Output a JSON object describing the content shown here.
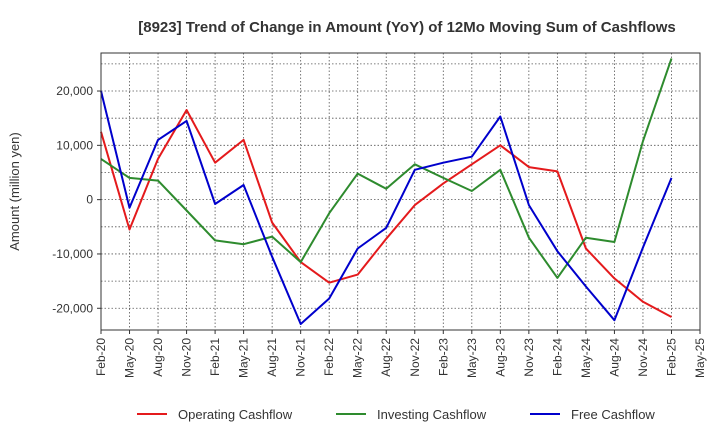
{
  "chart_data": {
    "type": "line",
    "title": "[8923]  Trend of Change in Amount (YoY) of 12Mo Moving Sum of Cashflows",
    "xlabel": "",
    "ylabel": "Amount (million yen)",
    "ylim": [
      -24000,
      27000
    ],
    "yticks": [
      -20000,
      -10000,
      0,
      10000,
      20000
    ],
    "ytick_labels": [
      "-20,000",
      "-10,000",
      "0",
      "10,000",
      "20,000"
    ],
    "grid": true,
    "legend_position": "bottom",
    "categories": [
      "Feb-20",
      "May-20",
      "Aug-20",
      "Nov-20",
      "Feb-21",
      "May-21",
      "Aug-21",
      "Nov-21",
      "Feb-22",
      "May-22",
      "Aug-22",
      "Nov-22",
      "Feb-23",
      "May-23",
      "Aug-23",
      "Nov-23",
      "Feb-24",
      "May-24",
      "Aug-24",
      "Nov-24",
      "Feb-25",
      "May-25"
    ],
    "series": [
      {
        "name": "Operating Cashflow",
        "color": "#e41a1c",
        "values": [
          12500,
          -5500,
          7500,
          16500,
          6800,
          11000,
          -4200,
          -11500,
          -15300,
          -13800,
          -7200,
          -1000,
          3000,
          6500,
          10000,
          6000,
          5200,
          -9000,
          -14500,
          -18800,
          -21600,
          null
        ]
      },
      {
        "name": "Investing Cashflow",
        "color": "#2e8b2e",
        "values": [
          7500,
          4000,
          3500,
          -2000,
          -7500,
          -8200,
          -6800,
          -11500,
          -2500,
          4800,
          2000,
          6500,
          4000,
          1600,
          5500,
          -7000,
          -14400,
          -7000,
          -7800,
          10800,
          26000,
          null
        ]
      },
      {
        "name": "Free Cashflow",
        "color": "#0000cc",
        "values": [
          20000,
          -1500,
          11000,
          14500,
          -800,
          2700,
          -10500,
          -22900,
          -18200,
          -9000,
          -5200,
          5500,
          6800,
          7900,
          15300,
          -1000,
          -9500,
          -16000,
          -22200,
          -8800,
          4000,
          null
        ]
      }
    ]
  }
}
